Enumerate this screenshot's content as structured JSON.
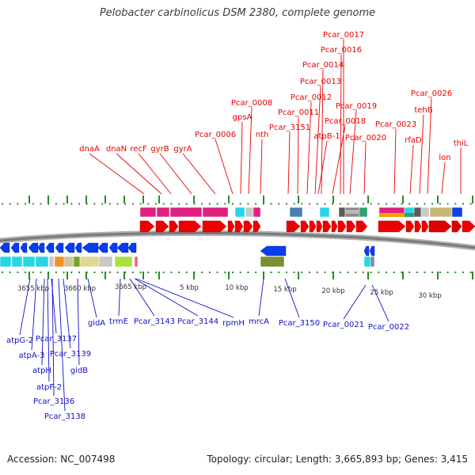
{
  "title": "Pelobacter carbinolicus DSM 2380, complete genome",
  "accession": "Accession: NC_007498",
  "summary": "Topology: circular; Length: 3,665,893 bp; Genes: 3,415",
  "colors": {
    "forward_label": "#e80000",
    "reverse_label": "#1010c8",
    "forward_arrow": "#ee0000",
    "reverse_arrow": "#0a3cf0",
    "tick": "#2a8a2a",
    "genome_line": "#7a7a7a"
  },
  "scale_labels": [
    "3655 kbp",
    "3660 kbp",
    "3665 kbp",
    "5 kbp",
    "10 kbp",
    "15 kbp",
    "20 kbp",
    "25 kbp",
    "30 kbp"
  ],
  "forward_genes": [
    "dnaA",
    "dnaN",
    "recF",
    "gyrB",
    "gyrA",
    "Pcar_0006",
    "gpsA",
    "Pcar_0008",
    "nth",
    "Pcar_3151",
    "Pcar_0011",
    "Pcar_0012",
    "Pcar_0013",
    "atpB-1",
    "Pcar_0014",
    "Pcar_0016",
    "Pcar_0017",
    "Pcar_0018",
    "Pcar_0019",
    "Pcar_0020",
    "Pcar_0023",
    "rfaD",
    "tehB",
    "Pcar_0026",
    "lon",
    "thiL"
  ],
  "reverse_genes": [
    "atpG-2",
    "atpA-3",
    "Pcar_3137",
    "atpH",
    "Pcar_3139",
    "atpF-2",
    "Pcar_3136",
    "Pcar_3138",
    "gidB",
    "gidA",
    "trmE",
    "Pcar_3143",
    "Pcar_3144",
    "rpmH",
    "mrcA",
    "Pcar_3150",
    "Pcar_0021",
    "Pcar_0022"
  ]
}
